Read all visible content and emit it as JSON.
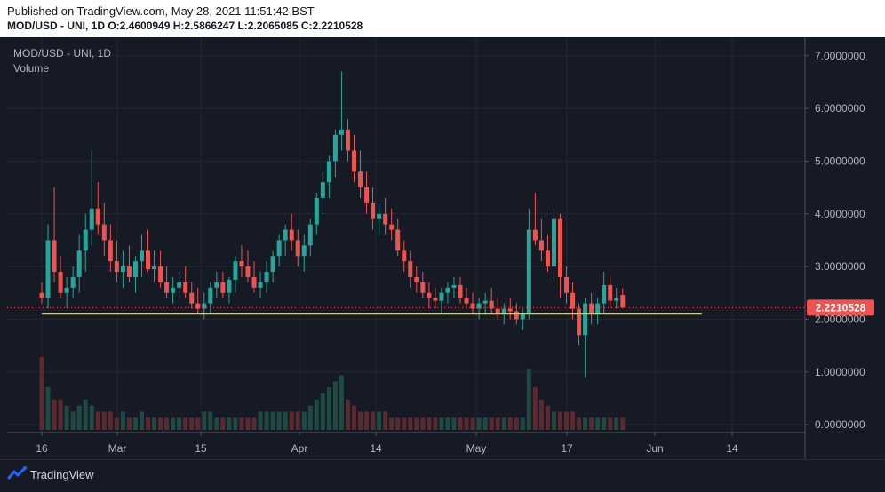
{
  "header": {
    "published": "Published on TradingView.com, May 28, 2021 11:51:42 BST",
    "ohlc_line": "MOD/USD - UNI, 1D  O:2.4600949 H:2.5866247 L:2.2065085 C:2.2210528"
  },
  "legend": {
    "symbol": "MOD/USD - UNI, 1D",
    "volume": "Volume"
  },
  "price_tag": "2.2210528",
  "footer": {
    "brand": "TradingView"
  },
  "colors": {
    "bg": "#161a25",
    "up": "#26a69a",
    "down": "#ef5350",
    "up_vol": "#1f4a43",
    "down_vol": "#5b2a30",
    "support": "#d4d43a",
    "grid": "#222733"
  },
  "chart_data": {
    "type": "candlestick",
    "y_ticks": [
      "7.0000000",
      "6.0000000",
      "5.0000000",
      "4.0000000",
      "3.0000000",
      "2.0000000",
      "1.0000000",
      "0.0000000"
    ],
    "x_ticks": [
      "16",
      "Mar",
      "15",
      "Apr",
      "14",
      "May",
      "17",
      "Jun",
      "14"
    ],
    "ylim": [
      -0.15,
      7.35
    ],
    "last_close": 2.2210528,
    "support_level": 2.1,
    "candles": [
      [
        2.5,
        2.7,
        2.3,
        2.4
      ],
      [
        2.4,
        3.8,
        2.2,
        3.5
      ],
      [
        3.5,
        4.5,
        2.7,
        2.9
      ],
      [
        2.9,
        3.2,
        2.4,
        2.5
      ],
      [
        2.5,
        2.8,
        2.2,
        2.6
      ],
      [
        2.6,
        3.0,
        2.4,
        2.8
      ],
      [
        2.8,
        3.6,
        2.5,
        3.3
      ],
      [
        3.3,
        4.0,
        2.9,
        3.7
      ],
      [
        3.7,
        5.2,
        3.4,
        4.1
      ],
      [
        4.1,
        4.6,
        3.6,
        3.8
      ],
      [
        3.8,
        4.2,
        3.2,
        3.5
      ],
      [
        3.5,
        3.8,
        2.9,
        3.1
      ],
      [
        3.1,
        3.5,
        2.7,
        2.9
      ],
      [
        2.9,
        3.3,
        2.6,
        3.0
      ],
      [
        3.0,
        3.4,
        2.7,
        2.8
      ],
      [
        2.8,
        3.2,
        2.5,
        3.1
      ],
      [
        3.1,
        3.6,
        2.8,
        3.3
      ],
      [
        3.3,
        3.7,
        2.9,
        2.95
      ],
      [
        2.95,
        3.3,
        2.7,
        3.0
      ],
      [
        3.0,
        3.3,
        2.6,
        2.7
      ],
      [
        2.7,
        3.0,
        2.4,
        2.5
      ],
      [
        2.5,
        2.8,
        2.3,
        2.6
      ],
      [
        2.6,
        2.9,
        2.4,
        2.7
      ],
      [
        2.7,
        3.0,
        2.4,
        2.5
      ],
      [
        2.5,
        2.7,
        2.2,
        2.3
      ],
      [
        2.3,
        2.6,
        2.1,
        2.2
      ],
      [
        2.2,
        2.5,
        2.0,
        2.3
      ],
      [
        2.3,
        2.7,
        2.1,
        2.6
      ],
      [
        2.6,
        2.9,
        2.4,
        2.7
      ],
      [
        2.7,
        2.9,
        2.4,
        2.5
      ],
      [
        2.5,
        2.8,
        2.3,
        2.75
      ],
      [
        2.75,
        3.2,
        2.5,
        3.1
      ],
      [
        3.1,
        3.4,
        2.8,
        3.0
      ],
      [
        3.0,
        3.3,
        2.7,
        2.8
      ],
      [
        2.8,
        3.1,
        2.5,
        2.6
      ],
      [
        2.6,
        2.9,
        2.4,
        2.7
      ],
      [
        2.7,
        3.1,
        2.5,
        2.9
      ],
      [
        2.9,
        3.3,
        2.7,
        3.2
      ],
      [
        3.2,
        3.6,
        3.0,
        3.5
      ],
      [
        3.5,
        3.8,
        3.2,
        3.7
      ],
      [
        3.7,
        4.0,
        3.3,
        3.5
      ],
      [
        3.5,
        3.7,
        3.0,
        3.2
      ],
      [
        3.2,
        3.6,
        2.9,
        3.4
      ],
      [
        3.4,
        3.9,
        3.2,
        3.8
      ],
      [
        3.8,
        4.4,
        3.6,
        4.3
      ],
      [
        4.3,
        4.8,
        4.0,
        4.6
      ],
      [
        4.6,
        5.1,
        4.3,
        5.0
      ],
      [
        5.0,
        5.6,
        4.7,
        5.5
      ],
      [
        5.5,
        6.7,
        5.2,
        5.6
      ],
      [
        5.6,
        5.8,
        5.0,
        5.2
      ],
      [
        5.2,
        5.5,
        4.6,
        4.8
      ],
      [
        4.8,
        5.2,
        4.3,
        4.5
      ],
      [
        4.5,
        4.8,
        4.0,
        4.2
      ],
      [
        4.2,
        4.5,
        3.7,
        3.9
      ],
      [
        3.9,
        4.2,
        3.6,
        4.0
      ],
      [
        4.0,
        4.3,
        3.6,
        3.8
      ],
      [
        3.8,
        4.1,
        3.5,
        3.7
      ],
      [
        3.7,
        3.9,
        3.2,
        3.3
      ],
      [
        3.3,
        3.5,
        2.9,
        3.1
      ],
      [
        3.1,
        3.3,
        2.6,
        2.8
      ],
      [
        2.8,
        3.0,
        2.5,
        2.7
      ],
      [
        2.7,
        2.9,
        2.4,
        2.5
      ],
      [
        2.5,
        2.7,
        2.2,
        2.4
      ],
      [
        2.4,
        2.6,
        2.2,
        2.35
      ],
      [
        2.35,
        2.6,
        2.1,
        2.5
      ],
      [
        2.5,
        2.7,
        2.3,
        2.6
      ],
      [
        2.6,
        2.8,
        2.4,
        2.65
      ],
      [
        2.65,
        2.8,
        2.3,
        2.4
      ],
      [
        2.4,
        2.6,
        2.2,
        2.3
      ],
      [
        2.3,
        2.5,
        2.1,
        2.2
      ],
      [
        2.2,
        2.4,
        2.0,
        2.3
      ],
      [
        2.3,
        2.5,
        2.1,
        2.35
      ],
      [
        2.35,
        2.6,
        2.1,
        2.2
      ],
      [
        2.2,
        2.4,
        2.0,
        2.1
      ],
      [
        2.1,
        2.3,
        1.9,
        2.2
      ],
      [
        2.2,
        2.4,
        2.0,
        2.15
      ],
      [
        2.15,
        2.3,
        1.9,
        2.0
      ],
      [
        2.0,
        2.2,
        1.8,
        2.1
      ],
      [
        2.1,
        4.1,
        2.0,
        3.7
      ],
      [
        3.7,
        4.4,
        3.4,
        3.5
      ],
      [
        3.5,
        3.9,
        3.1,
        3.3
      ],
      [
        3.3,
        3.6,
        2.9,
        3.0
      ],
      [
        3.0,
        4.1,
        2.7,
        3.9
      ],
      [
        3.9,
        4.0,
        2.4,
        2.8
      ],
      [
        2.8,
        3.0,
        2.3,
        2.5
      ],
      [
        2.5,
        2.7,
        2.0,
        2.2
      ],
      [
        2.2,
        2.3,
        1.5,
        1.7
      ],
      [
        1.7,
        2.4,
        0.9,
        2.3
      ],
      [
        2.3,
        2.5,
        1.9,
        2.1
      ],
      [
        2.1,
        2.4,
        1.9,
        2.3
      ],
      [
        2.3,
        2.9,
        2.1,
        2.65
      ],
      [
        2.65,
        2.8,
        2.2,
        2.35
      ],
      [
        2.35,
        2.6,
        2.2,
        2.4
      ],
      [
        2.4600949,
        2.5866247,
        2.2065085,
        2.2210528
      ]
    ],
    "volumes": [
      12,
      7,
      5,
      5,
      4,
      3,
      4,
      5,
      4,
      3,
      3,
      3,
      2,
      3,
      2,
      2,
      3,
      2,
      2,
      2,
      2,
      2,
      2,
      2,
      2,
      2,
      3,
      3,
      2,
      2,
      2,
      2,
      2,
      2,
      2,
      3,
      3,
      3,
      3,
      3,
      3,
      3,
      3,
      4,
      5,
      6,
      7,
      8,
      9,
      5,
      4,
      3,
      3,
      3,
      3,
      3,
      2,
      2,
      2,
      2,
      2,
      2,
      2,
      2,
      2,
      2,
      2,
      2,
      2,
      2,
      2,
      2,
      2,
      2,
      2,
      2,
      2,
      2,
      10,
      7,
      5,
      4,
      3,
      3,
      3,
      3,
      2,
      2,
      2,
      2,
      2,
      2,
      2,
      2
    ]
  }
}
